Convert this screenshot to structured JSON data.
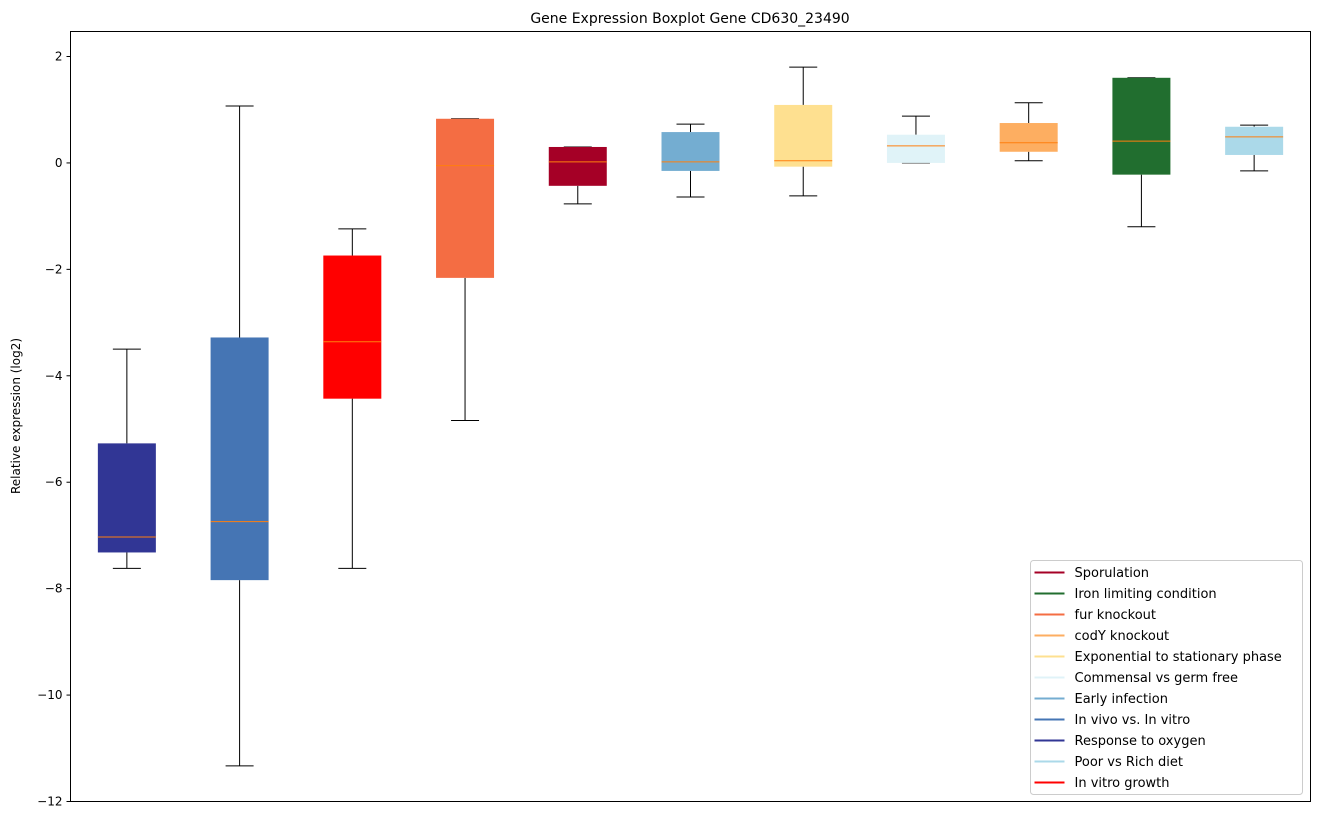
{
  "chart_data": {
    "type": "boxplot",
    "title": "Gene Expression Boxplot Gene CD630_23490",
    "xlabel": "",
    "ylabel": "Relative expression (log2)",
    "ylim": [
      -12,
      2.47
    ],
    "yticks": [
      -12,
      -10,
      -8,
      -6,
      -4,
      -2,
      0,
      2
    ],
    "median_color": "#ff7f0e",
    "legend_placement": "lower-right",
    "series": [
      {
        "name": "Response to oxygen",
        "color": "#313695",
        "whislo": -7.62,
        "q1": -7.32,
        "med": -7.03,
        "q3": -5.27,
        "whishi": -3.5
      },
      {
        "name": "In vivo vs. In vitro",
        "color": "#4575b4",
        "whislo": -11.33,
        "q1": -7.84,
        "med": -6.74,
        "q3": -3.28,
        "whishi": 1.07
      },
      {
        "name": "In vitro growth",
        "color": "#ff0000",
        "whislo": -7.62,
        "q1": -4.43,
        "med": -3.36,
        "q3": -1.74,
        "whishi": -1.24
      },
      {
        "name": "fur knockout",
        "color": "#f46d43",
        "whislo": -4.84,
        "q1": -2.16,
        "med": -0.05,
        "q3": 0.83,
        "whishi": 0.83
      },
      {
        "name": "Sporulation",
        "color": "#a50026",
        "whislo": -0.77,
        "q1": -0.43,
        "med": 0.02,
        "q3": 0.3,
        "whishi": 0.3
      },
      {
        "name": "Early infection",
        "color": "#74add1",
        "whislo": -0.64,
        "q1": -0.15,
        "med": 0.02,
        "q3": 0.58,
        "whishi": 0.73
      },
      {
        "name": "Exponential to stationary phase",
        "color": "#fee090",
        "whislo": -0.62,
        "q1": -0.07,
        "med": 0.04,
        "q3": 1.09,
        "whishi": 1.8
      },
      {
        "name": "Commensal vs germ free",
        "color": "#e0f3f8",
        "whislo": 0.0,
        "q1": 0.0,
        "med": 0.32,
        "q3": 0.53,
        "whishi": 0.88
      },
      {
        "name": "codY knockout",
        "color": "#fdae61",
        "whislo": 0.04,
        "q1": 0.21,
        "med": 0.38,
        "q3": 0.75,
        "whishi": 1.13
      },
      {
        "name": "Iron limiting condition",
        "color": "#216e2f",
        "whislo": -1.2,
        "q1": -0.22,
        "med": 0.41,
        "q3": 1.6,
        "whishi": 1.6
      },
      {
        "name": "Poor vs Rich diet",
        "color": "#abd9e9",
        "whislo": -0.15,
        "q1": 0.15,
        "med": 0.49,
        "q3": 0.68,
        "whishi": 0.71
      }
    ],
    "legend": [
      {
        "label": "Sporulation",
        "color": "#a50026"
      },
      {
        "label": "Iron limiting condition",
        "color": "#216e2f"
      },
      {
        "label": "fur knockout",
        "color": "#f46d43"
      },
      {
        "label": "codY knockout",
        "color": "#fdae61"
      },
      {
        "label": "Exponential to stationary phase",
        "color": "#fee090"
      },
      {
        "label": "Commensal vs germ free",
        "color": "#e0f3f8"
      },
      {
        "label": "Early infection",
        "color": "#74add1"
      },
      {
        "label": "In vivo vs. In vitro",
        "color": "#4575b4"
      },
      {
        "label": "Response to oxygen",
        "color": "#313695"
      },
      {
        "label": "Poor vs Rich diet",
        "color": "#abd9e9"
      },
      {
        "label": "In vitro growth",
        "color": "#ff0000"
      }
    ]
  }
}
